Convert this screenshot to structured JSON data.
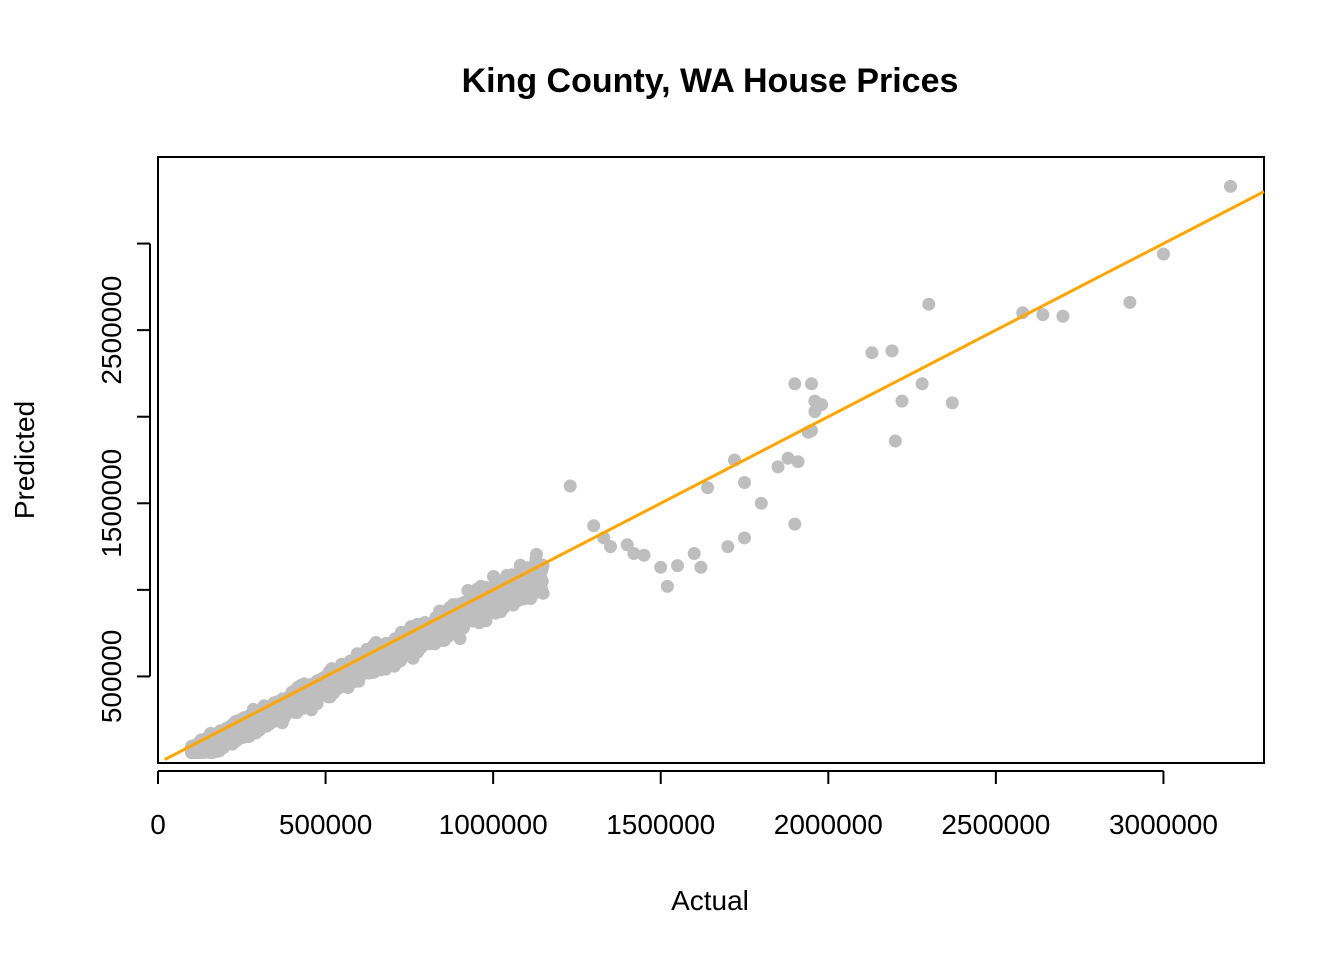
{
  "chart_data": {
    "type": "scatter",
    "title": "King County, WA House Prices",
    "xlabel": "Actual",
    "ylabel": "Predicted",
    "xlim": [
      0,
      3300000
    ],
    "ylim": [
      0,
      3500000
    ],
    "x_ticks": [
      0,
      500000,
      1000000,
      1500000,
      2000000,
      2500000,
      3000000
    ],
    "x_tick_labels": [
      "0",
      "500000",
      "1000000",
      "1500000",
      "2000000",
      "2500000",
      "3000000"
    ],
    "y_ticks": [
      500000,
      1000000,
      1500000,
      2000000,
      2500000,
      3000000
    ],
    "y_tick_labels": [
      "500000",
      "",
      "1500000",
      "",
      "2500000",
      ""
    ],
    "grid": false,
    "point_color": "#bebebe",
    "line_color": "#ffa500",
    "reference_line": {
      "type": "identity",
      "intercept": 0,
      "slope": 1
    },
    "series": [
      {
        "points": [
          [
            1230000,
            1600000
          ],
          [
            1300000,
            1370000
          ],
          [
            1330000,
            1300000
          ],
          [
            1350000,
            1250000
          ],
          [
            1400000,
            1260000
          ],
          [
            1420000,
            1210000
          ],
          [
            1450000,
            1200000
          ],
          [
            1500000,
            1130000
          ],
          [
            1520000,
            1020000
          ],
          [
            1550000,
            1140000
          ],
          [
            1600000,
            1210000
          ],
          [
            1620000,
            1130000
          ],
          [
            1640000,
            1590000
          ],
          [
            1700000,
            1250000
          ],
          [
            1720000,
            1750000
          ],
          [
            1750000,
            1300000
          ],
          [
            1750000,
            1620000
          ],
          [
            1800000,
            1500000
          ],
          [
            1850000,
            1710000
          ],
          [
            1880000,
            1760000
          ],
          [
            1900000,
            2190000
          ],
          [
            1900000,
            1380000
          ],
          [
            1910000,
            1740000
          ],
          [
            1940000,
            1910000
          ],
          [
            1950000,
            2190000
          ],
          [
            1950000,
            1920000
          ],
          [
            1960000,
            2030000
          ],
          [
            1980000,
            2070000
          ],
          [
            1960000,
            2090000
          ],
          [
            2130000,
            2370000
          ],
          [
            2190000,
            2380000
          ],
          [
            2200000,
            1860000
          ],
          [
            2220000,
            2090000
          ],
          [
            2280000,
            2190000
          ],
          [
            2300000,
            2650000
          ],
          [
            2370000,
            2080000
          ],
          [
            2580000,
            2600000
          ],
          [
            2640000,
            2590000
          ],
          [
            2700000,
            2580000
          ],
          [
            2900000,
            2660000
          ],
          [
            3000000,
            2940000
          ],
          [
            3200000,
            3330000
          ]
        ]
      }
    ]
  }
}
